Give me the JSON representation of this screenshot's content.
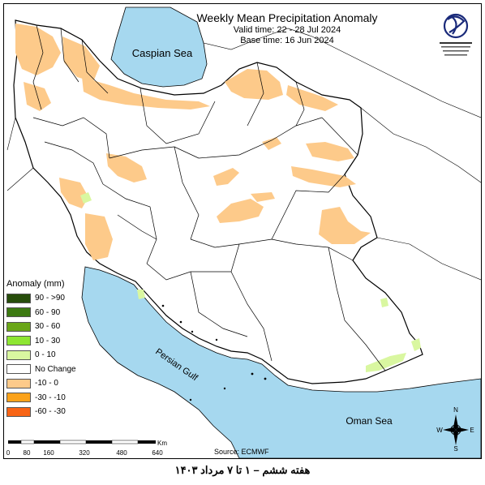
{
  "map": {
    "title": "Weekly Mean Precipitation Anomaly",
    "valid_time": "Valid time: 22 - 28 Jul 2024",
    "base_time": "Base time: 16 Jun 2024",
    "caspian_label": "Caspian Sea",
    "gulf_label": "Persian Gulf",
    "oman_label": "Oman Sea",
    "source": "Source: ECMWF",
    "caption": "هفته ششم – ۱ تا ۷ مرداد ۱۴۰۳",
    "colors": {
      "water": "#a6d8ef",
      "land": "#ffffff",
      "neg_10_0": "#fdca8a",
      "boundary": "#000000"
    }
  },
  "legend": {
    "title": "Anomaly (mm)",
    "items": [
      {
        "label": "90 - >90",
        "color": "#274d0b"
      },
      {
        "label": "60 - 90",
        "color": "#3d7a12"
      },
      {
        "label": "30 - 60",
        "color": "#6aa618"
      },
      {
        "label": "10 - 30",
        "color": "#8ee632"
      },
      {
        "label": "0 - 10",
        "color": "#d9f7a0"
      },
      {
        "label": "No Change",
        "color": "#ffffff"
      },
      {
        "label": "-10 - 0",
        "color": "#fdca8a"
      },
      {
        "label": "-30 - -10",
        "color": "#fba21a"
      },
      {
        "label": "-60 - -30",
        "color": "#f86415"
      }
    ]
  },
  "scalebar": {
    "unit": "Km",
    "ticks": [
      "0",
      "80",
      "160",
      "320",
      "480",
      "640"
    ]
  },
  "compass": {
    "n": "N",
    "s": "S",
    "e": "E",
    "w": "W"
  }
}
